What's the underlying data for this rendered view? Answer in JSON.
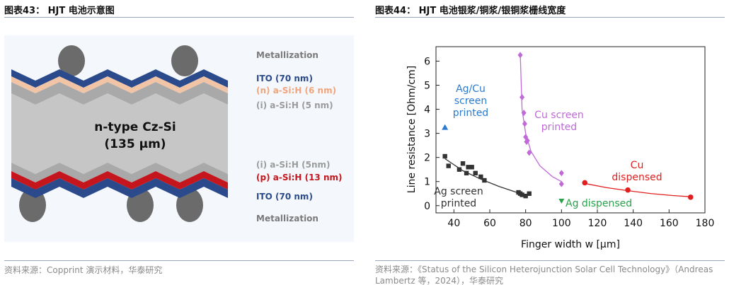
{
  "left_figure": {
    "title": "图表43： HJT 电池示意图",
    "source": "资料来源：Copprint 演示材料，华泰研究",
    "labels": {
      "metallization_top": "Metallization",
      "ito_top": "ITO (70 nm)",
      "n_asi": "(n) a-Si:H  (6 nm)",
      "i_asi_top": "(i) a-Si:H (5 nm)",
      "core_line1": "n-type Cz-Si",
      "core_line2": "(135 µm)",
      "i_asi_bottom": "(i) a-Si:H (5nm)",
      "p_asi": "(p) a-Si:H (13 nm)",
      "ito_bottom": "ITO (70 nm)",
      "metallization_bottom": "Metallization"
    },
    "colors": {
      "ito": "#2a4a8c",
      "n_asi": "#f2c4a6",
      "i_asi": "#a9a9a9",
      "silicon": "#c6c6c6",
      "p_asi": "#c4161c",
      "metal": "#6b6b6b",
      "label_ito": "#2a4a8c",
      "label_n": "#f0a57c",
      "label_i": "#9b9b9b",
      "label_p": "#c4161c",
      "label_metal": "#7a7a7a"
    }
  },
  "right_figure": {
    "title": "图表44： HJT 电池银浆/铜浆/银铜浆栅线宽度",
    "source": "资料来源：《Status of the Silicon Heterojunction Solar Cell Technology》（Andreas Lambertz 等，2024），华泰研究"
  },
  "chart_data": {
    "type": "scatter",
    "xlabel": "Finger width w [µm]",
    "ylabel": "Line resistance [Ohm/cm]",
    "xlim": [
      30,
      180
    ],
    "ylim": [
      -0.3,
      6.6
    ],
    "xticks": [
      40,
      60,
      80,
      100,
      120,
      140,
      160,
      180
    ],
    "yticks": [
      0,
      1,
      2,
      3,
      4,
      5,
      6
    ],
    "grid": false,
    "series": [
      {
        "name": "Ag screen printed",
        "name_lines": [
          "Ag screen",
          "printed"
        ],
        "marker": "square",
        "color": "#333333",
        "x": [
          35,
          37,
          43,
          45,
          47,
          48,
          50,
          52,
          55,
          57,
          76,
          77,
          78,
          80,
          82
        ],
        "y": [
          2.05,
          1.65,
          1.5,
          1.75,
          1.35,
          1.6,
          1.6,
          1.35,
          1.2,
          1.05,
          0.55,
          0.5,
          0.45,
          0.4,
          0.5
        ],
        "fit_x": [
          35,
          45,
          55,
          65,
          75,
          82
        ],
        "fit_y": [
          1.95,
          1.45,
          1.1,
          0.8,
          0.55,
          0.42
        ]
      },
      {
        "name": "Cu screen printed",
        "name_lines": [
          "Cu screen",
          "printed"
        ],
        "marker": "diamond",
        "color": "#c06ad8",
        "x": [
          77,
          78,
          79,
          79.5,
          80,
          80.5,
          81,
          82,
          100,
          100
        ],
        "y": [
          6.25,
          4.5,
          3.85,
          3.4,
          2.85,
          2.65,
          2.7,
          2.2,
          1.35,
          0.9
        ],
        "fit_x": [
          77,
          78,
          80,
          83,
          88,
          95,
          100
        ],
        "fit_y": [
          6.3,
          4.0,
          3.0,
          2.25,
          1.65,
          1.2,
          1.0
        ]
      },
      {
        "name": "Cu dispensed",
        "name_lines": [
          "Cu",
          "dispensed"
        ],
        "marker": "circle",
        "color": "#e02020",
        "x": [
          113,
          137,
          172
        ],
        "y": [
          0.95,
          0.65,
          0.35
        ],
        "fit_x": [
          113,
          125,
          137,
          150,
          162,
          172
        ],
        "fit_y": [
          0.92,
          0.75,
          0.62,
          0.5,
          0.42,
          0.37
        ]
      },
      {
        "name": "Ag dispensed",
        "name_lines": [
          "Ag dispensed"
        ],
        "marker": "triangle-down",
        "color": "#2aa14a",
        "x": [
          100
        ],
        "y": [
          0.2
        ]
      },
      {
        "name": "Ag/Cu screen printed",
        "name_lines": [
          "Ag/Cu",
          "screen",
          "printed"
        ],
        "marker": "triangle-up",
        "color": "#2a7bd0",
        "x": [
          35
        ],
        "y": [
          3.25
        ]
      }
    ]
  }
}
